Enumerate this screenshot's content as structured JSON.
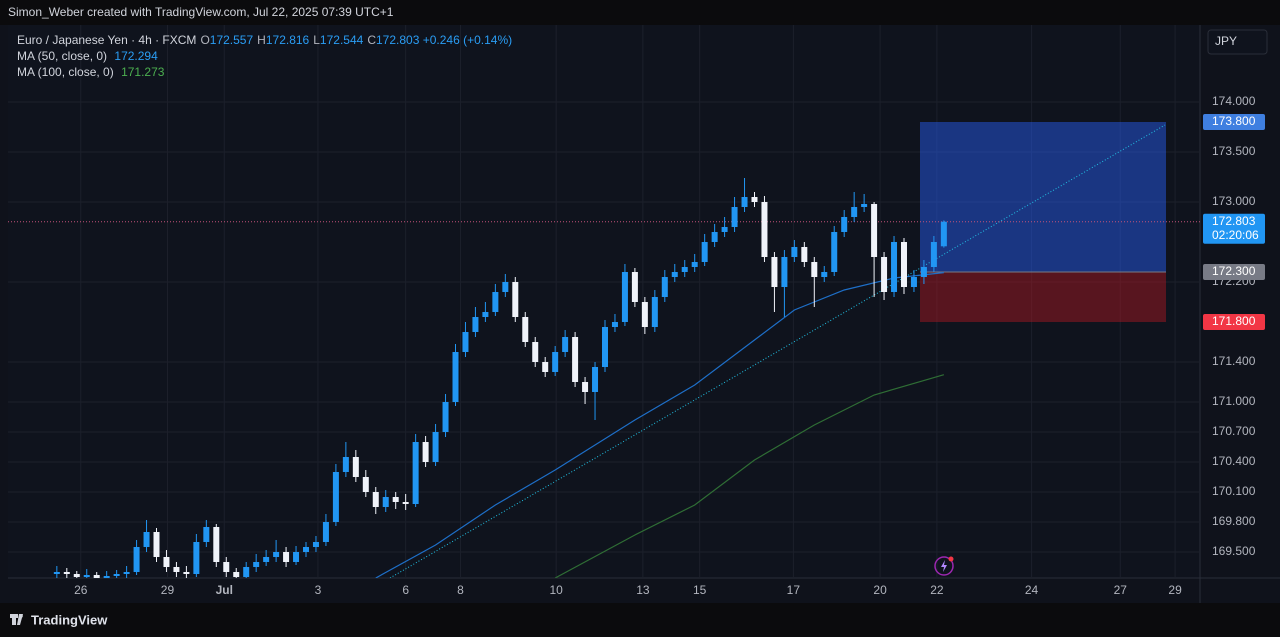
{
  "chart_data": {
    "type": "candlestick",
    "header": "Simon_Weber created with TradingView.com, Jul 22, 2025 07:39 UTC+1",
    "title": "Euro / Japanese Yen · 4h · FXCM",
    "ohlc_legend": [
      {
        "label": "O",
        "value": 172.557
      },
      {
        "label": "H",
        "value": 172.816
      },
      {
        "label": "L",
        "value": 172.544
      },
      {
        "label": "C",
        "value": 172.803
      }
    ],
    "change": "+0.246 (+0.14%)",
    "currency": "JPY",
    "brand": "TradingView",
    "up_color": "#2196f3",
    "down_color": "#f0f3fa",
    "grid": true,
    "xlim": [
      -4.9,
      114.7
    ],
    "xticks": [
      {
        "value": 2.4,
        "label": "26"
      },
      {
        "value": 11.1,
        "label": "29"
      },
      {
        "value": 16.8,
        "label": "Jul"
      },
      {
        "value": 26.2,
        "label": "3"
      },
      {
        "value": 35,
        "label": "6"
      },
      {
        "value": 40.5,
        "label": "8"
      },
      {
        "value": 50.1,
        "label": "10"
      },
      {
        "value": 58.8,
        "label": "13"
      },
      {
        "value": 64.5,
        "label": "15"
      },
      {
        "value": 73.9,
        "label": "17"
      },
      {
        "value": 82.6,
        "label": "20"
      },
      {
        "value": 88.3,
        "label": "22"
      },
      {
        "value": 97.8,
        "label": "24"
      },
      {
        "value": 106.7,
        "label": "27"
      },
      {
        "value": 112.2,
        "label": "29"
      }
    ],
    "ylim": [
      169.24,
      174.77
    ],
    "yticks": [
      {
        "value": 174,
        "label": "174.000"
      },
      {
        "value": 173.5,
        "label": "173.500"
      },
      {
        "value": 173,
        "label": "173.000"
      },
      {
        "value": 172.2,
        "label": "172.200"
      },
      {
        "value": 171.4,
        "label": "171.400"
      },
      {
        "value": 171,
        "label": "171.000"
      },
      {
        "value": 170.7,
        "label": "170.700"
      },
      {
        "value": 170.4,
        "label": "170.400"
      },
      {
        "value": 170.1,
        "label": "170.100"
      },
      {
        "value": 169.8,
        "label": "169.800"
      },
      {
        "value": 169.5,
        "label": "169.500"
      }
    ],
    "candles": [
      [
        169.28,
        169.36,
        169.22,
        169.3
      ],
      [
        169.3,
        169.34,
        169.24,
        169.28
      ],
      [
        169.28,
        169.31,
        169.2,
        169.25
      ],
      [
        169.25,
        169.33,
        169.21,
        169.27
      ],
      [
        169.27,
        169.3,
        169.18,
        169.24
      ],
      [
        169.24,
        169.31,
        169.2,
        169.26
      ],
      [
        169.26,
        169.32,
        169.22,
        169.28
      ],
      [
        169.28,
        169.36,
        169.24,
        169.3
      ],
      [
        169.3,
        169.62,
        169.27,
        169.55
      ],
      [
        169.55,
        169.82,
        169.5,
        169.7
      ],
      [
        169.7,
        169.74,
        169.4,
        169.45
      ],
      [
        169.45,
        169.52,
        169.3,
        169.35
      ],
      [
        169.35,
        169.4,
        169.25,
        169.3
      ],
      [
        169.3,
        169.36,
        169.22,
        169.28
      ],
      [
        169.28,
        169.68,
        169.25,
        169.6
      ],
      [
        169.6,
        169.82,
        169.55,
        169.75
      ],
      [
        169.75,
        169.78,
        169.35,
        169.4
      ],
      [
        169.4,
        169.45,
        169.25,
        169.3
      ],
      [
        169.3,
        169.34,
        169.2,
        169.25
      ],
      [
        169.25,
        169.4,
        169.22,
        169.35
      ],
      [
        169.35,
        169.48,
        169.3,
        169.4
      ],
      [
        169.4,
        169.52,
        169.36,
        169.45
      ],
      [
        169.45,
        169.62,
        169.4,
        169.5
      ],
      [
        169.5,
        169.55,
        169.35,
        169.4
      ],
      [
        169.4,
        169.56,
        169.37,
        169.5
      ],
      [
        169.5,
        169.6,
        169.45,
        169.55
      ],
      [
        169.55,
        169.66,
        169.5,
        169.6
      ],
      [
        169.6,
        169.88,
        169.56,
        169.8
      ],
      [
        169.8,
        170.38,
        169.76,
        170.3
      ],
      [
        170.3,
        170.6,
        170.25,
        170.45
      ],
      [
        170.45,
        170.52,
        170.2,
        170.25
      ],
      [
        170.25,
        170.32,
        170.05,
        170.1
      ],
      [
        170.1,
        170.15,
        169.88,
        169.95
      ],
      [
        169.95,
        170.12,
        169.9,
        170.05
      ],
      [
        170.05,
        170.1,
        169.93,
        170.0
      ],
      [
        170.0,
        170.08,
        169.92,
        169.98
      ],
      [
        169.98,
        170.68,
        169.95,
        170.6
      ],
      [
        170.6,
        170.66,
        170.35,
        170.4
      ],
      [
        170.4,
        170.78,
        170.36,
        170.7
      ],
      [
        170.7,
        171.08,
        170.65,
        171.0
      ],
      [
        171.0,
        171.58,
        170.96,
        171.5
      ],
      [
        171.5,
        171.8,
        171.45,
        171.7
      ],
      [
        171.7,
        171.95,
        171.65,
        171.85
      ],
      [
        171.85,
        172.0,
        171.8,
        171.9
      ],
      [
        171.9,
        172.18,
        171.86,
        172.1
      ],
      [
        172.1,
        172.28,
        172.05,
        172.2
      ],
      [
        172.2,
        172.25,
        171.8,
        171.85
      ],
      [
        171.85,
        171.9,
        171.55,
        171.6
      ],
      [
        171.6,
        171.65,
        171.35,
        171.4
      ],
      [
        171.4,
        171.45,
        171.25,
        171.3
      ],
      [
        171.3,
        171.56,
        171.26,
        171.5
      ],
      [
        171.5,
        171.72,
        171.45,
        171.65
      ],
      [
        171.65,
        171.7,
        171.15,
        171.2
      ],
      [
        171.2,
        171.25,
        170.98,
        171.1
      ],
      [
        171.1,
        171.4,
        170.82,
        171.35
      ],
      [
        171.35,
        171.82,
        171.3,
        171.75
      ],
      [
        171.75,
        171.88,
        171.7,
        171.8
      ],
      [
        171.8,
        172.38,
        171.76,
        172.3
      ],
      [
        172.3,
        172.34,
        171.95,
        172.0
      ],
      [
        172.0,
        172.05,
        171.68,
        171.75
      ],
      [
        171.75,
        172.12,
        171.7,
        172.05
      ],
      [
        172.05,
        172.32,
        172.0,
        172.25
      ],
      [
        172.25,
        172.38,
        172.2,
        172.3
      ],
      [
        172.3,
        172.42,
        172.25,
        172.35
      ],
      [
        172.35,
        172.48,
        172.3,
        172.4
      ],
      [
        172.4,
        172.68,
        172.36,
        172.6
      ],
      [
        172.6,
        172.78,
        172.55,
        172.7
      ],
      [
        172.7,
        172.85,
        172.65,
        172.75
      ],
      [
        172.75,
        173.05,
        172.7,
        172.95
      ],
      [
        172.95,
        173.24,
        172.9,
        173.05
      ],
      [
        173.05,
        173.1,
        172.95,
        173.0
      ],
      [
        173.0,
        173.06,
        172.4,
        172.45
      ],
      [
        172.45,
        172.5,
        171.9,
        172.15
      ],
      [
        172.15,
        172.52,
        171.85,
        172.45
      ],
      [
        172.45,
        172.62,
        172.4,
        172.55
      ],
      [
        172.55,
        172.6,
        172.35,
        172.4
      ],
      [
        172.4,
        172.45,
        171.95,
        172.25
      ],
      [
        172.25,
        172.36,
        172.2,
        172.3
      ],
      [
        172.3,
        172.76,
        172.26,
        172.7
      ],
      [
        172.7,
        172.92,
        172.65,
        172.85
      ],
      [
        172.85,
        173.1,
        172.8,
        172.95
      ],
      [
        172.95,
        173.08,
        172.9,
        172.98
      ],
      [
        172.98,
        173.0,
        172.05,
        172.45
      ],
      [
        172.45,
        172.5,
        172.02,
        172.1
      ],
      [
        172.1,
        172.66,
        172.05,
        172.6
      ],
      [
        172.6,
        172.64,
        172.08,
        172.15
      ],
      [
        172.15,
        172.32,
        172.1,
        172.25
      ],
      [
        172.25,
        172.42,
        172.18,
        172.35
      ],
      [
        172.35,
        172.66,
        172.3,
        172.6
      ],
      [
        172.557,
        172.816,
        172.544,
        172.803
      ]
    ],
    "indicators": [
      {
        "name": "MA (50, close, 0)",
        "value": 172.294,
        "color": "#1e6fc8",
        "label_color": "#2a9df4",
        "x": [
          32,
          38,
          44,
          50,
          54,
          58,
          64,
          70,
          74,
          79,
          84,
          89
        ],
        "values": [
          169.24,
          169.57,
          169.97,
          170.32,
          170.57,
          170.82,
          171.17,
          171.62,
          171.92,
          172.12,
          172.24,
          172.294
        ]
      },
      {
        "name": "MA (100, close, 0)",
        "value": 171.273,
        "color": "#2f6e35",
        "label_color": "#4caf50",
        "x": [
          50,
          58,
          64,
          70,
          76,
          82,
          89
        ],
        "values": [
          169.24,
          169.67,
          169.97,
          170.42,
          170.77,
          171.07,
          171.273
        ]
      }
    ],
    "last_price": 172.803,
    "countdown": "02:20:06",
    "position": {
      "target": {
        "value": 173.8,
        "label": "173.800"
      },
      "entry": {
        "value": 172.3,
        "label": "172.300"
      },
      "stop": {
        "value": 171.8,
        "label": "171.800"
      }
    }
  }
}
